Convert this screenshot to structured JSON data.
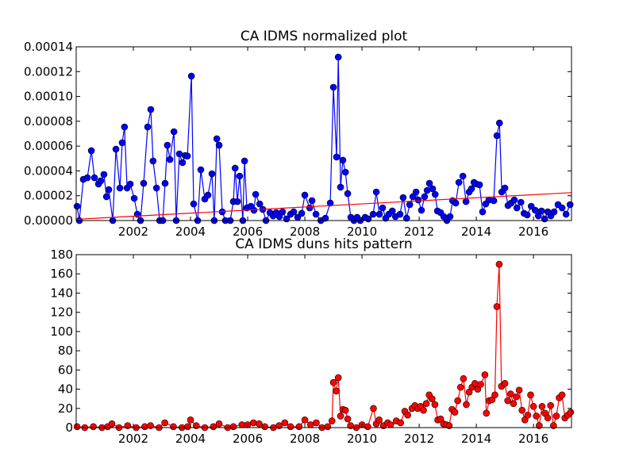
{
  "chart_data": [
    {
      "type": "line",
      "title": "CA IDMS normalized plot",
      "xlim": [
        2000,
        2017.33
      ],
      "xticks": [
        2002,
        2004,
        2006,
        2008,
        2010,
        2012,
        2014,
        2016
      ],
      "ylim": [
        0,
        0.00014
      ],
      "yticks": [
        {
          "value": 0,
          "label": "0.00000"
        },
        {
          "value": 2e-05,
          "label": "0.00002"
        },
        {
          "value": 4e-05,
          "label": "0.00004"
        },
        {
          "value": 6e-05,
          "label": "0.00006"
        },
        {
          "value": 8e-05,
          "label": "0.00008"
        },
        {
          "value": 0.0001,
          "label": "0.00010"
        },
        {
          "value": 0.00012,
          "label": "0.00012"
        },
        {
          "value": 0.00014,
          "label": "0.00014"
        }
      ],
      "series": [
        {
          "color": "#0000ff",
          "marker": true,
          "x": [
            2000.03,
            2000.11,
            2000.25,
            2000.39,
            2000.53,
            2000.64,
            2000.78,
            2000.86,
            2000.97,
            2001.06,
            2001.14,
            2001.28,
            2001.39,
            2001.53,
            2001.61,
            2001.69,
            2001.78,
            2001.89,
            2002.03,
            2002.14,
            2002.25,
            2002.36,
            2002.5,
            2002.61,
            2002.69,
            2002.81,
            2002.92,
            2003.03,
            2003.11,
            2003.19,
            2003.28,
            2003.42,
            2003.5,
            2003.61,
            2003.72,
            2003.81,
            2003.89,
            2004.03,
            2004.11,
            2004.25,
            2004.36,
            2004.5,
            2004.61,
            2004.75,
            2004.83,
            2004.92,
            2005.0,
            2005.11,
            2005.22,
            2005.39,
            2005.5,
            2005.56,
            2005.64,
            2005.72,
            2005.83,
            2005.89,
            2005.97,
            2006.11,
            2006.22,
            2006.28,
            2006.42,
            2006.53,
            2006.64,
            2006.78,
            2006.89,
            2007.0,
            2007.11,
            2007.22,
            2007.36,
            2007.5,
            2007.61,
            2007.75,
            2007.89,
            2008.0,
            2008.17,
            2008.25,
            2008.39,
            2008.56,
            2008.72,
            2008.89,
            2009.0,
            2009.11,
            2009.17,
            2009.25,
            2009.33,
            2009.42,
            2009.5,
            2009.61,
            2009.72,
            2009.83,
            2009.94,
            2010.11,
            2010.22,
            2010.39,
            2010.5,
            2010.61,
            2010.72,
            2010.83,
            2010.94,
            2011.06,
            2011.17,
            2011.33,
            2011.44,
            2011.56,
            2011.67,
            2011.78,
            2011.89,
            2011.97,
            2012.08,
            2012.19,
            2012.28,
            2012.36,
            2012.47,
            2012.56,
            2012.64,
            2012.75,
            2012.86,
            2012.97,
            2013.08,
            2013.17,
            2013.28,
            2013.39,
            2013.53,
            2013.64,
            2013.75,
            2013.83,
            2013.92,
            2014.0,
            2014.11,
            2014.22,
            2014.33,
            2014.44,
            2014.61,
            2014.72,
            2014.81,
            2014.89,
            2015.0,
            2015.11,
            2015.22,
            2015.33,
            2015.42,
            2015.56,
            2015.67,
            2015.78,
            2015.92,
            2016.06,
            2016.17,
            2016.28,
            2016.39,
            2016.5,
            2016.61,
            2016.72,
            2016.86,
            2017.0,
            2017.14,
            2017.28
          ],
          "values": [
            1.15e-05,
            0,
            3.32e-05,
            3.45e-05,
            5.63e-05,
            3.45e-05,
            2.94e-05,
            3.2e-05,
            3.71e-05,
            1.92e-05,
            2.49e-05,
            0,
            5.75e-05,
            2.62e-05,
            6.27e-05,
            7.54e-05,
            2.62e-05,
            2.94e-05,
            1.79e-05,
            5.1e-06,
            0,
            3e-05,
            7.54e-05,
            8.95e-05,
            4.8e-05,
            2.62e-05,
            0,
            0,
            3e-05,
            6.07e-05,
            4.92e-05,
            7.16e-05,
            0,
            5.37e-05,
            4.67e-05,
            5.24e-05,
            5.2e-05,
            0.0001164,
            1.34e-05,
            0,
            4.09e-05,
            1.73e-05,
            2.05e-05,
            3.77e-05,
            0,
            6.59e-05,
            6.07e-05,
            7e-06,
            0,
            0,
            1.53e-05,
            4.22e-05,
            1.53e-05,
            3.58e-05,
            0,
            4.8e-05,
            1.02e-05,
            1.15e-05,
            8.3e-06,
            2.11e-05,
            1.34e-05,
            9e-06,
            0,
            6.4e-06,
            3.8e-06,
            6.4e-06,
            3.2e-06,
            7e-06,
            1.3e-06,
            5.1e-06,
            7e-06,
            2.6e-06,
            5.8e-06,
            2.05e-05,
            1.02e-05,
            1.6e-05,
            5.1e-06,
            0,
            1.9e-06,
            1.41e-05,
            0.0001074,
            5.12e-05,
            0.0001317,
            2.69e-05,
            4.86e-05,
            3.9e-05,
            2.17e-05,
            2.6e-06,
            0,
            2.6e-06,
            0,
            2.6e-06,
            1.3e-06,
            5.1e-06,
            2.3e-05,
            5.1e-06,
            1.02e-05,
            1.9e-06,
            5.1e-06,
            7.7e-06,
            3.2e-06,
            5.1e-06,
            1.85e-05,
            1.9e-06,
            1.28e-05,
            1.92e-05,
            2.3e-05,
            1.66e-05,
            8.3e-06,
            1.92e-05,
            2.43e-05,
            3e-05,
            2.56e-05,
            2.11e-05,
            7.7e-06,
            6.4e-06,
            3.2e-06,
            0,
            3.2e-06,
            1.6e-05,
            1.41e-05,
            3.07e-05,
            3.58e-05,
            1.53e-05,
            2.3e-05,
            2.56e-05,
            3.07e-05,
            2.94e-05,
            2.88e-05,
            7e-06,
            1.34e-05,
            1.66e-05,
            1.6e-05,
            6.84e-05,
            7.86e-05,
            2.3e-05,
            2.62e-05,
            1.21e-05,
            1.41e-05,
            1.66e-05,
            1.02e-05,
            1.47e-05,
            5.8e-06,
            4.5e-06,
            1.15e-05,
            8.3e-06,
            3.8e-06,
            7.7e-06,
            1.3e-06,
            7e-06,
            3.8e-06,
            7e-06,
            1.28e-05,
            1.02e-05,
            5.1e-06,
            1.28e-05
          ]
        },
        {
          "color": "#ff0000",
          "marker": false,
          "x": [
            2000,
            2017.33
          ],
          "values": [
            1e-06,
            2.25e-05
          ]
        }
      ]
    },
    {
      "type": "line",
      "title": "CA IDMS duns hits pattern",
      "xlim": [
        2000,
        2017.33
      ],
      "xticks": [
        2002,
        2004,
        2006,
        2008,
        2010,
        2012,
        2014,
        2016
      ],
      "ylim": [
        0,
        180
      ],
      "yticks": [
        0,
        20,
        40,
        60,
        80,
        100,
        120,
        140,
        160,
        180
      ],
      "series": [
        {
          "color": "#ff0000",
          "marker": true,
          "x": [
            2000.03,
            2000.3,
            2000.6,
            2000.9,
            2001.1,
            2001.25,
            2001.5,
            2001.8,
            2002.1,
            2002.4,
            2002.6,
            2002.9,
            2003.1,
            2003.4,
            2003.7,
            2003.9,
            2004.0,
            2004.2,
            2004.5,
            2004.8,
            2005.0,
            2005.3,
            2005.5,
            2005.8,
            2006.0,
            2006.2,
            2006.4,
            2006.6,
            2006.9,
            2007.1,
            2007.3,
            2007.5,
            2007.8,
            2008.0,
            2008.2,
            2008.4,
            2008.6,
            2008.8,
            2008.95,
            2009.0,
            2009.1,
            2009.17,
            2009.25,
            2009.33,
            2009.42,
            2009.5,
            2009.6,
            2009.8,
            2010.0,
            2010.2,
            2010.4,
            2010.5,
            2010.6,
            2010.75,
            2010.9,
            2011.0,
            2011.2,
            2011.35,
            2011.5,
            2011.6,
            2011.75,
            2011.85,
            2011.95,
            2012.05,
            2012.15,
            2012.25,
            2012.35,
            2012.45,
            2012.55,
            2012.65,
            2012.75,
            2012.85,
            2012.95,
            2013.05,
            2013.15,
            2013.25,
            2013.35,
            2013.45,
            2013.55,
            2013.65,
            2013.75,
            2013.85,
            2013.95,
            2014.05,
            2014.15,
            2014.3,
            2014.35,
            2014.45,
            2014.55,
            2014.65,
            2014.72,
            2014.8,
            2014.88,
            2015.0,
            2015.1,
            2015.2,
            2015.3,
            2015.4,
            2015.5,
            2015.6,
            2015.7,
            2015.8,
            2015.9,
            2016.0,
            2016.1,
            2016.2,
            2016.3,
            2016.4,
            2016.5,
            2016.6,
            2016.7,
            2016.8,
            2016.9,
            2017.0,
            2017.1,
            2017.2,
            2017.3
          ],
          "values": [
            1,
            0,
            1,
            0,
            1,
            4,
            0,
            2,
            0,
            1,
            2,
            0,
            5,
            1,
            0,
            1,
            8,
            2,
            0,
            1,
            4,
            0,
            1,
            3,
            3,
            5,
            4,
            1,
            0,
            2,
            5,
            1,
            1,
            8,
            3,
            5,
            0,
            1,
            7,
            47,
            38,
            52,
            12,
            19,
            18,
            9,
            2,
            0,
            3,
            1,
            20,
            4,
            8,
            2,
            5,
            3,
            7,
            5,
            17,
            13,
            20,
            23,
            20,
            22,
            18,
            25,
            34,
            30,
            24,
            8,
            9,
            4,
            3,
            2,
            19,
            16,
            28,
            42,
            51,
            24,
            37,
            42,
            46,
            40,
            45,
            55,
            15,
            28,
            29,
            34,
            126,
            170,
            43,
            46,
            28,
            35,
            25,
            32,
            39,
            18,
            8,
            13,
            34,
            22,
            12,
            2,
            22,
            15,
            10,
            23,
            2,
            12,
            31,
            34,
            10,
            13,
            16
          ]
        }
      ]
    }
  ]
}
